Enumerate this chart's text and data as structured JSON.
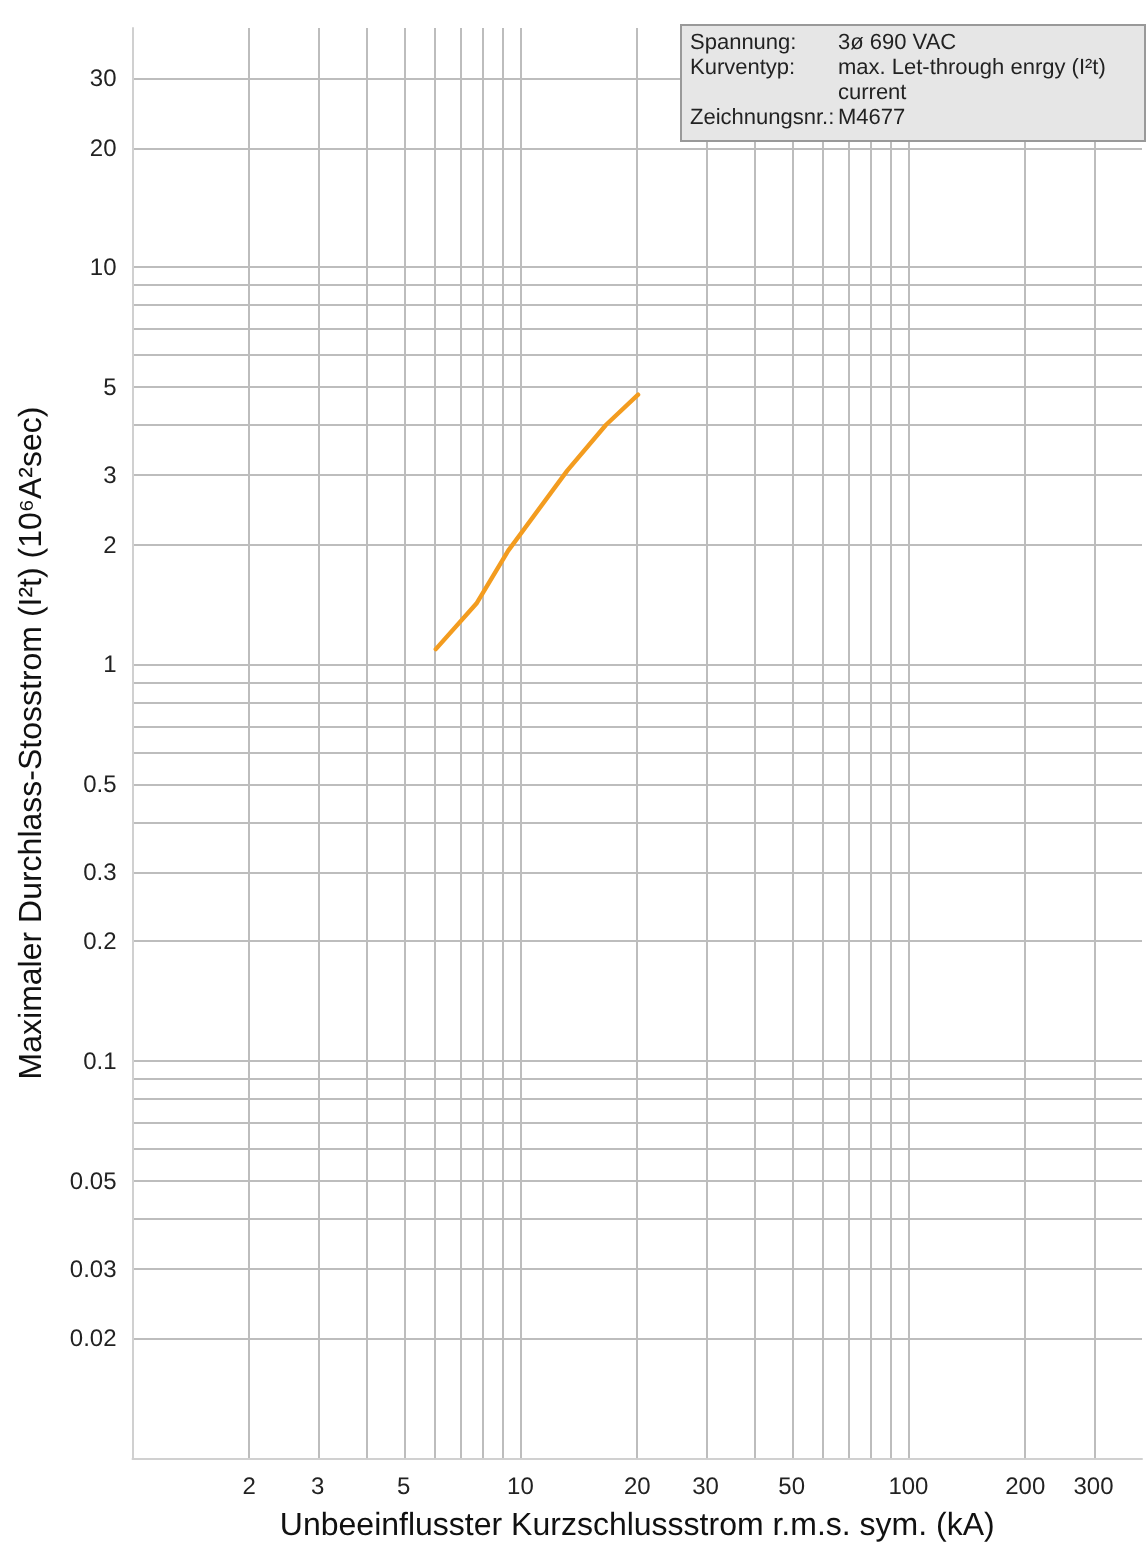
{
  "chart_data": {
    "type": "line",
    "xlabel": "Unbeeinflusster Kurzschlussstrom r.m.s. sym. (kA)",
    "ylabel": "Maximaler Durchlass-Stosstrom (I²t) (10⁶A²sec)",
    "annotations": [
      "Spannung:",
      "3ø 690 VAC",
      "Kurventyp:",
      "max. Let-through enrgy (I²t) current",
      "Zeichnungsnr.:",
      "M4677"
    ],
    "x": [
      6.05,
      7.7,
      9.3,
      13.2,
      16.6,
      20.1
    ],
    "series": [
      {
        "color": "#f39c1f",
        "values": [
          1.09,
          1.42,
          1.93,
          3.07,
          4.0,
          4.77
        ]
      }
    ],
    "log": "xy",
    "xlim": [
      1,
      400
    ],
    "ylim": [
      0.01,
      40
    ],
    "xticks": [
      {
        "value": 2,
        "label": "2"
      },
      {
        "value": 3,
        "label": "3"
      },
      {
        "value": 4,
        "label": null
      },
      {
        "value": 5,
        "label": "5"
      },
      {
        "value": 6,
        "label": null
      },
      {
        "value": 7,
        "label": null
      },
      {
        "value": 8,
        "label": null
      },
      {
        "value": 9,
        "label": null
      },
      {
        "value": 10,
        "label": "10"
      },
      {
        "value": 20,
        "label": "20"
      },
      {
        "value": 30,
        "label": "30"
      },
      {
        "value": 40,
        "label": null
      },
      {
        "value": 50,
        "label": "50"
      },
      {
        "value": 60,
        "label": null
      },
      {
        "value": 70,
        "label": null
      },
      {
        "value": 80,
        "label": null
      },
      {
        "value": 90,
        "label": null
      },
      {
        "value": 100,
        "label": "100"
      },
      {
        "value": 200,
        "label": "200"
      },
      {
        "value": 300,
        "label": "300"
      }
    ],
    "yticks": [
      {
        "value": 0.02,
        "label": "0.02"
      },
      {
        "value": 0.03,
        "label": "0.03"
      },
      {
        "value": 0.04,
        "label": null
      },
      {
        "value": 0.05,
        "label": "0.05"
      },
      {
        "value": 0.06,
        "label": null
      },
      {
        "value": 0.07,
        "label": null
      },
      {
        "value": 0.08,
        "label": null
      },
      {
        "value": 0.09,
        "label": null
      },
      {
        "value": 0.1,
        "label": "0.1"
      },
      {
        "value": 0.2,
        "label": "0.2"
      },
      {
        "value": 0.3,
        "label": "0.3"
      },
      {
        "value": 0.4,
        "label": null
      },
      {
        "value": 0.5,
        "label": "0.5"
      },
      {
        "value": 0.6,
        "label": null
      },
      {
        "value": 0.7,
        "label": null
      },
      {
        "value": 0.8,
        "label": null
      },
      {
        "value": 0.9,
        "label": null
      },
      {
        "value": 1,
        "label": "1"
      },
      {
        "value": 2,
        "label": "2"
      },
      {
        "value": 3,
        "label": "3"
      },
      {
        "value": 4,
        "label": null
      },
      {
        "value": 5,
        "label": "5"
      },
      {
        "value": 6,
        "label": null
      },
      {
        "value": 7,
        "label": null
      },
      {
        "value": 8,
        "label": null
      },
      {
        "value": 9,
        "label": null
      },
      {
        "value": 10,
        "label": "10"
      },
      {
        "value": 20,
        "label": "20"
      },
      {
        "value": 30,
        "label": "30"
      }
    ],
    "grid": true,
    "marker": "none",
    "line_style": "solid"
  }
}
